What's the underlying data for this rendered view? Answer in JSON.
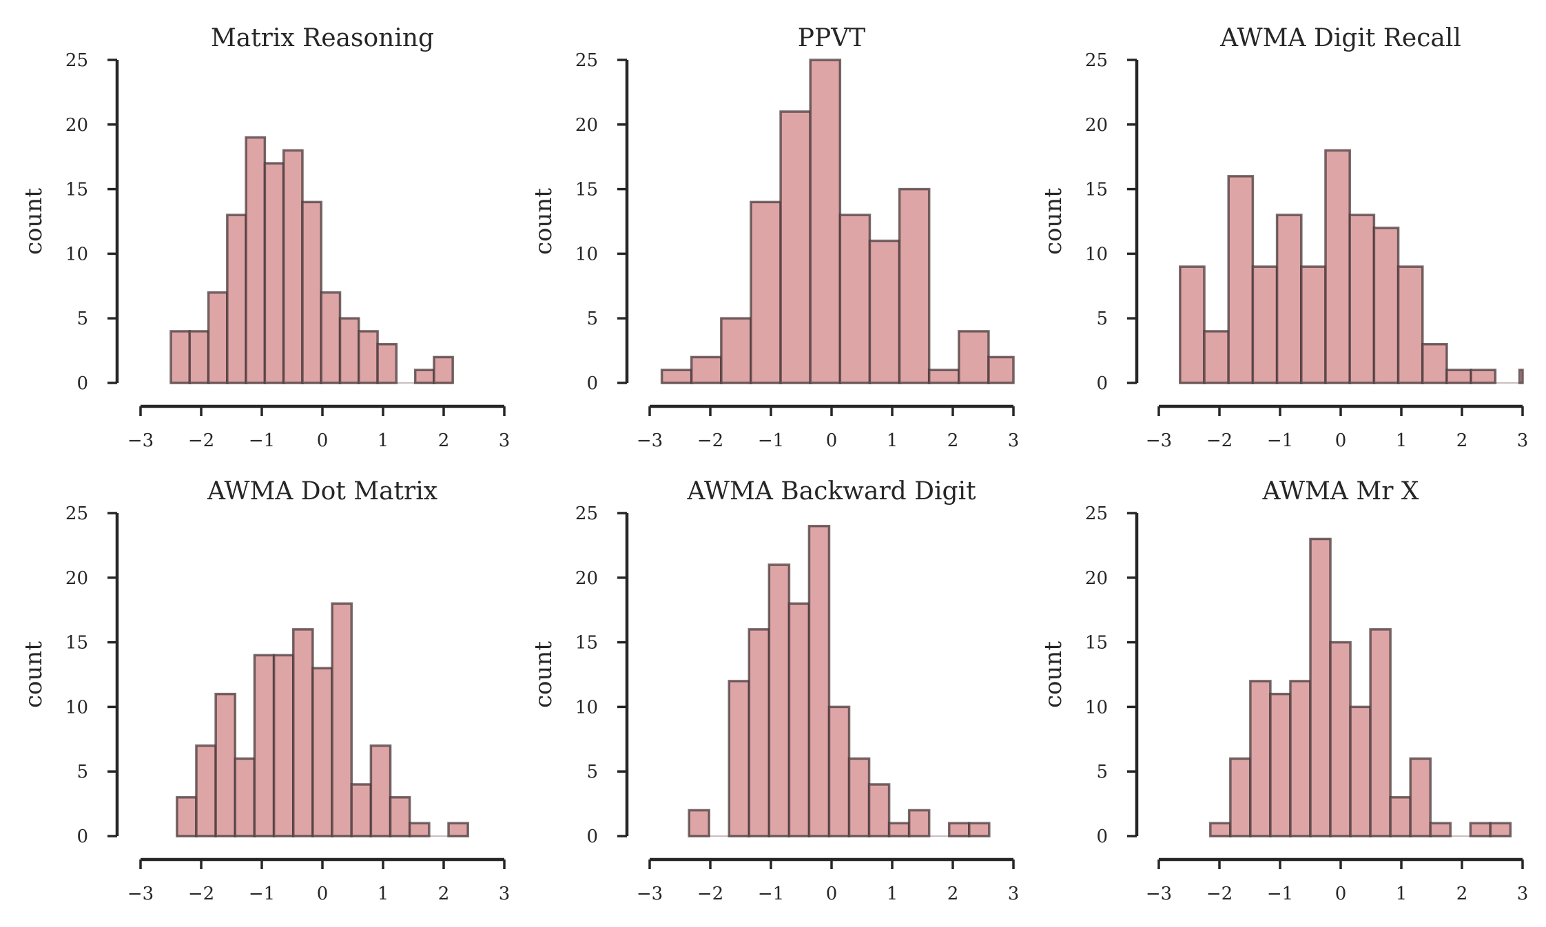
{
  "chart_data": [
    {
      "type": "histogram",
      "title": "Matrix Reasoning",
      "ylabel": "count",
      "xlim": [
        -3,
        3
      ],
      "ylim": [
        0,
        25
      ],
      "xticks": [
        -3,
        -2,
        -1,
        0,
        1,
        2,
        3
      ],
      "yticks": [
        0,
        5,
        10,
        15,
        20,
        25
      ],
      "bin_edges": [
        -2.5,
        -2.19,
        -1.88,
        -1.57,
        -1.26,
        -0.95,
        -0.64,
        -0.33,
        -0.02,
        0.29,
        0.6,
        0.91,
        1.22,
        1.53,
        1.84,
        2.15
      ],
      "counts": [
        4,
        4,
        7,
        13,
        19,
        17,
        18,
        14,
        7,
        5,
        4,
        3,
        0,
        1,
        2
      ]
    },
    {
      "type": "histogram",
      "title": "PPVT",
      "ylabel": "count",
      "xlim": [
        -3,
        3
      ],
      "ylim": [
        0,
        25
      ],
      "xticks": [
        -3,
        -2,
        -1,
        0,
        1,
        2,
        3
      ],
      "yticks": [
        0,
        5,
        10,
        15,
        20,
        25
      ],
      "bin_edges": [
        -2.8,
        -2.31,
        -1.82,
        -1.33,
        -0.84,
        -0.35,
        0.14,
        0.63,
        1.12,
        1.61,
        2.1,
        2.59,
        3.0
      ],
      "counts": [
        1,
        2,
        5,
        14,
        21,
        25,
        13,
        11,
        15,
        1,
        4,
        2
      ]
    },
    {
      "type": "histogram",
      "title": "AWMA Digit Recall",
      "ylabel": "count",
      "xlim": [
        -3,
        3
      ],
      "ylim": [
        0,
        25
      ],
      "xticks": [
        -3,
        -2,
        -1,
        0,
        1,
        2,
        3
      ],
      "yticks": [
        0,
        5,
        10,
        15,
        20,
        25
      ],
      "bin_edges": [
        -2.65,
        -2.25,
        -1.85,
        -1.45,
        -1.05,
        -0.65,
        -0.25,
        0.15,
        0.55,
        0.95,
        1.35,
        1.75,
        2.15,
        2.55,
        2.95,
        3.0
      ],
      "counts": [
        9,
        4,
        16,
        9,
        13,
        9,
        18,
        13,
        12,
        9,
        3,
        1,
        1,
        0,
        1
      ]
    },
    {
      "type": "histogram",
      "title": "AWMA Dot Matrix",
      "ylabel": "count",
      "xlim": [
        -3,
        3
      ],
      "ylim": [
        0,
        25
      ],
      "xticks": [
        -3,
        -2,
        -1,
        0,
        1,
        2,
        3
      ],
      "yticks": [
        0,
        5,
        10,
        15,
        20,
        25
      ],
      "bin_edges": [
        -2.4,
        -2.08,
        -1.76,
        -1.44,
        -1.12,
        -0.8,
        -0.48,
        -0.16,
        0.16,
        0.48,
        0.8,
        1.12,
        1.44,
        1.76,
        2.08,
        2.4
      ],
      "counts": [
        3,
        7,
        11,
        6,
        14,
        14,
        16,
        13,
        18,
        4,
        7,
        3,
        1,
        0,
        1
      ]
    },
    {
      "type": "histogram",
      "title": "AWMA Backward Digit",
      "ylabel": "count",
      "xlim": [
        -3,
        3
      ],
      "ylim": [
        0,
        25
      ],
      "xticks": [
        -3,
        -2,
        -1,
        0,
        1,
        2,
        3
      ],
      "yticks": [
        0,
        5,
        10,
        15,
        20,
        25
      ],
      "bin_edges": [
        -2.35,
        -2.02,
        -1.69,
        -1.36,
        -1.03,
        -0.7,
        -0.37,
        -0.04,
        0.29,
        0.62,
        0.95,
        1.28,
        1.61,
        1.94,
        2.27,
        2.6
      ],
      "counts": [
        2,
        0,
        12,
        16,
        21,
        18,
        24,
        10,
        6,
        4,
        1,
        2,
        0,
        1,
        1
      ]
    },
    {
      "type": "histogram",
      "title": "AWMA Mr X",
      "ylabel": "count",
      "xlim": [
        -3,
        3
      ],
      "ylim": [
        0,
        25
      ],
      "xticks": [
        -3,
        -2,
        -1,
        0,
        1,
        2,
        3
      ],
      "yticks": [
        0,
        5,
        10,
        15,
        20,
        25
      ],
      "bin_edges": [
        -2.15,
        -1.82,
        -1.49,
        -1.16,
        -0.83,
        -0.5,
        -0.17,
        0.16,
        0.49,
        0.82,
        1.15,
        1.48,
        1.81,
        2.14,
        2.47,
        2.8
      ],
      "counts": [
        1,
        6,
        12,
        11,
        12,
        23,
        15,
        10,
        16,
        3,
        6,
        1,
        0,
        1,
        1
      ]
    }
  ],
  "tick_format": {
    "minus_sign": "−"
  }
}
